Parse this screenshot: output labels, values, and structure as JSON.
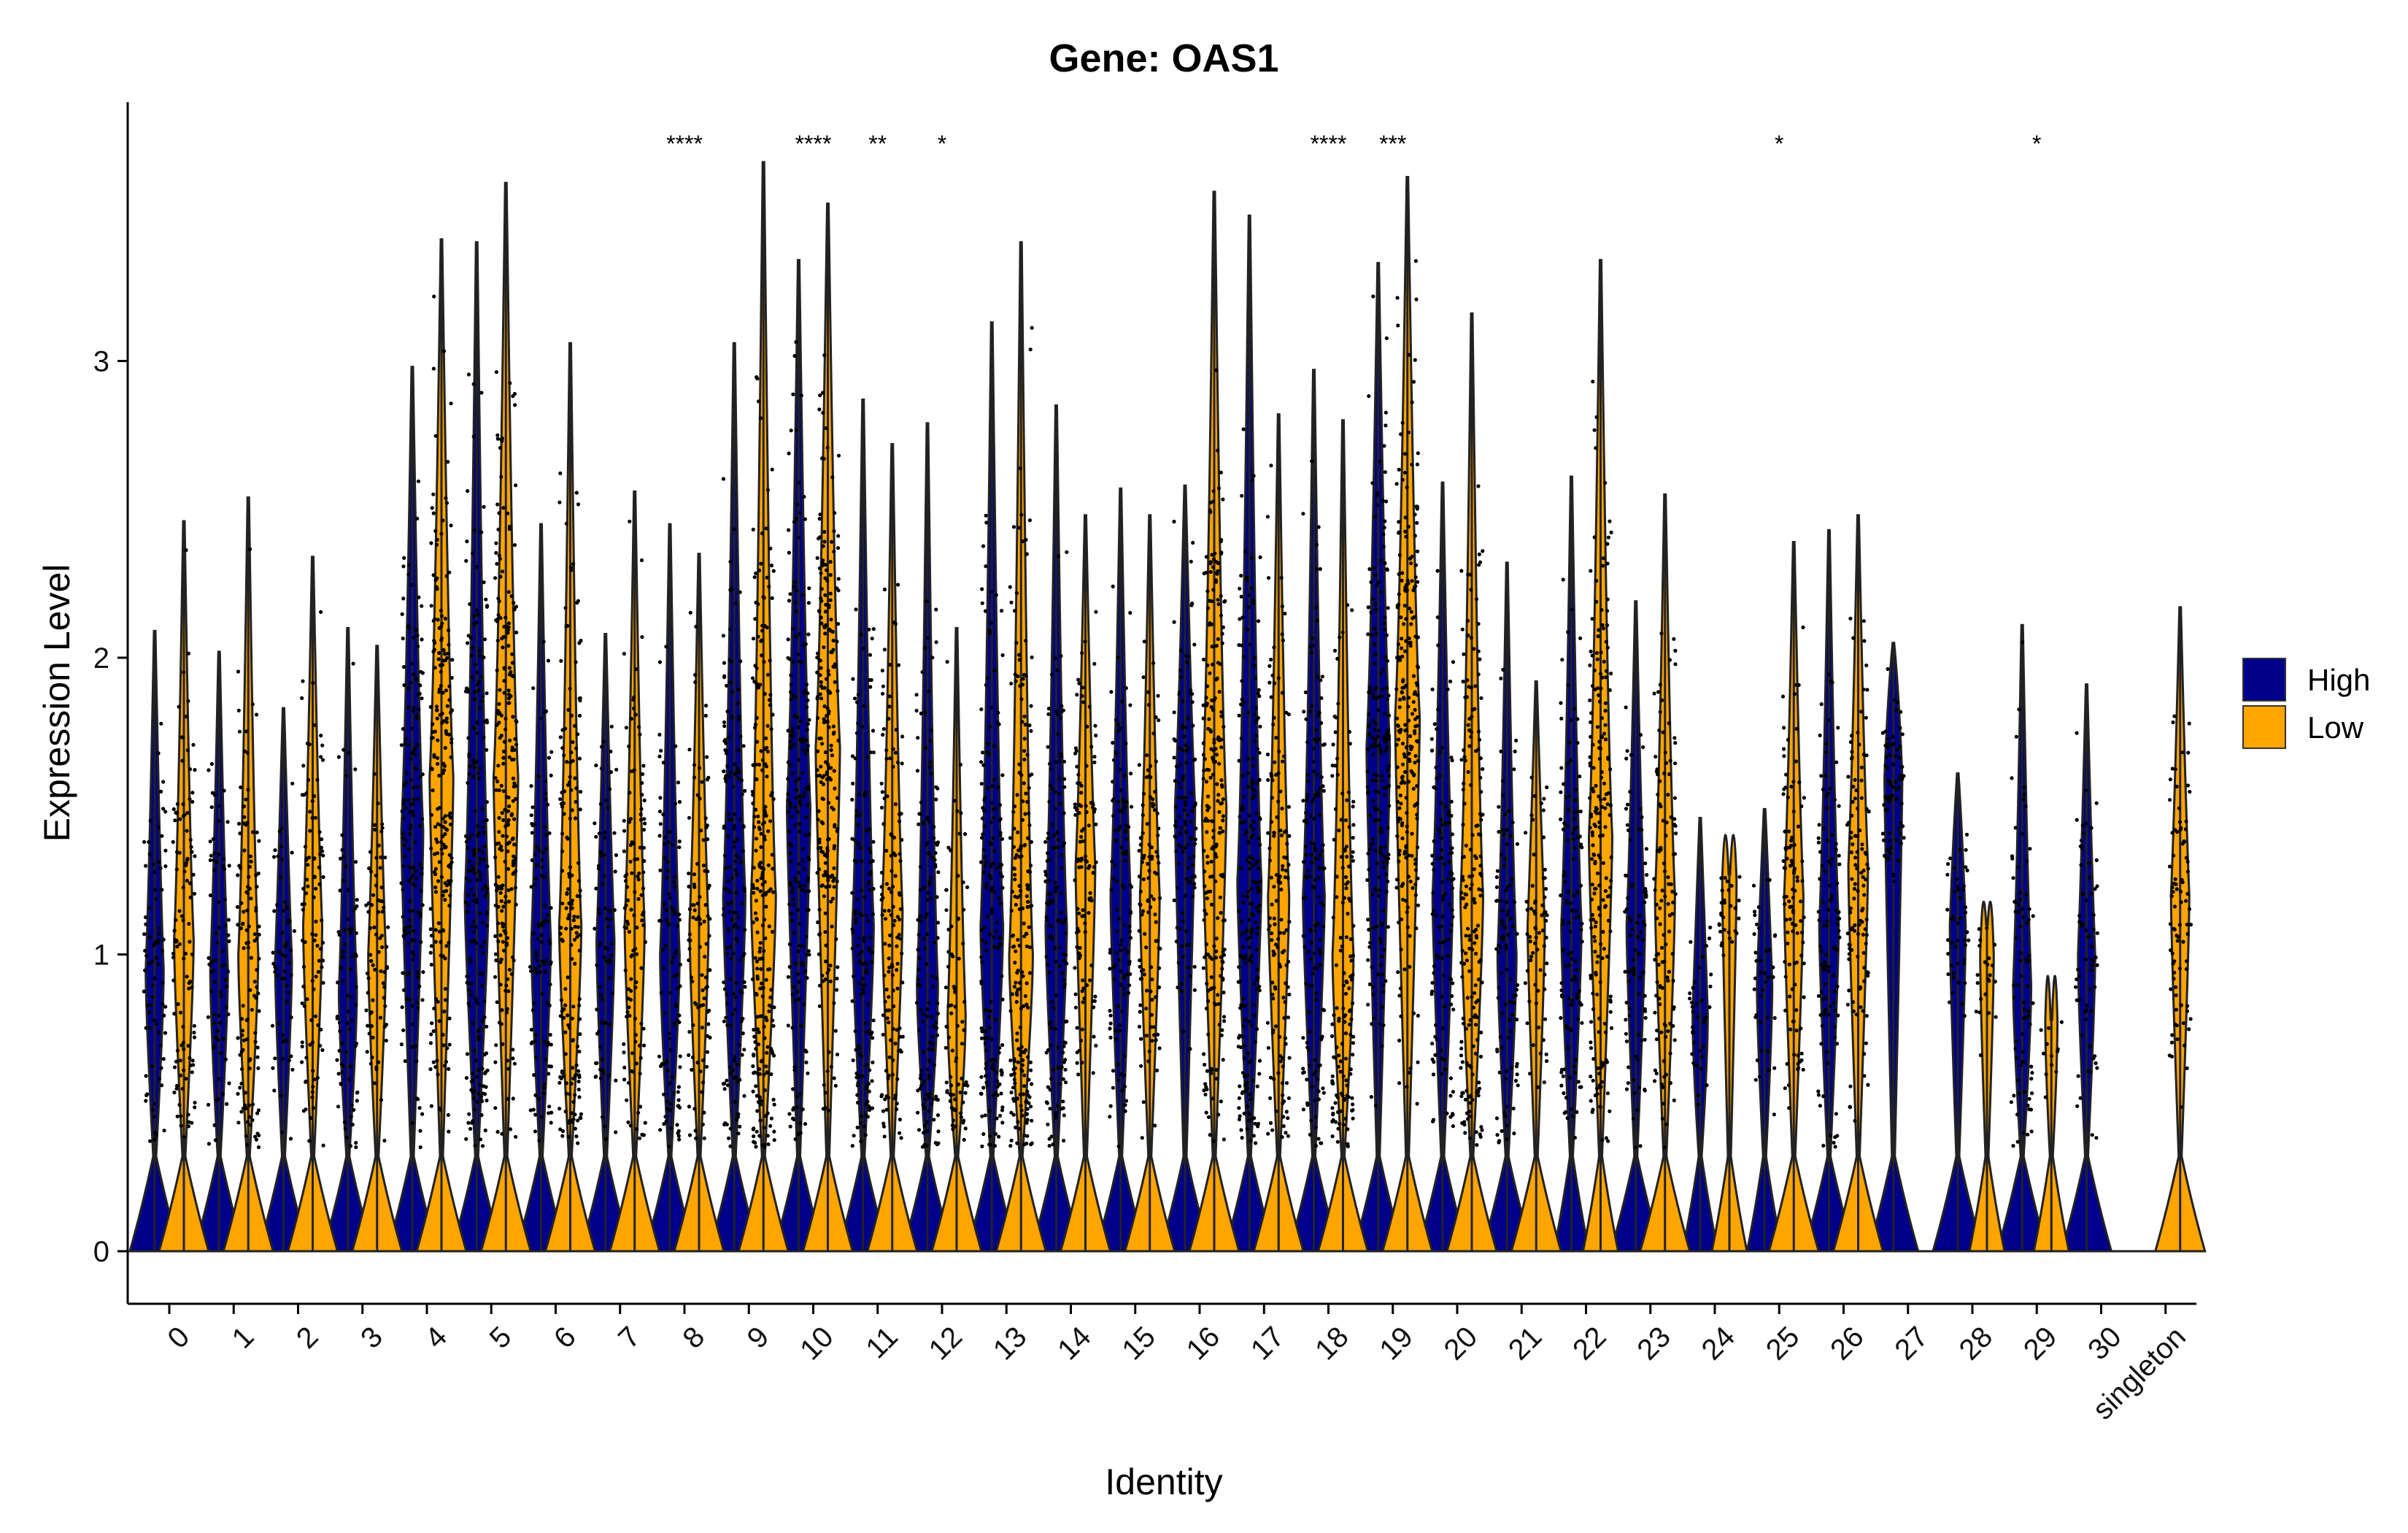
{
  "chart_data": {
    "type": "violin",
    "title": "Gene: OAS1",
    "xlabel": "Identity",
    "ylabel": "Expression Level",
    "ylim": [
      -0.18,
      3.87
    ],
    "yticks": [
      0,
      1,
      2,
      3
    ],
    "grid": false,
    "legend_position": "right",
    "categories": [
      "0",
      "1",
      "2",
      "3",
      "4",
      "5",
      "6",
      "7",
      "8",
      "9",
      "10",
      "11",
      "12",
      "13",
      "14",
      "15",
      "16",
      "17",
      "18",
      "19",
      "20",
      "21",
      "22",
      "23",
      "24",
      "25",
      "26",
      "27",
      "28",
      "29",
      "30",
      "singleton"
    ],
    "series": [
      {
        "name": "High",
        "color": "#00008B",
        "max_values": [
          2.09,
          2.02,
          1.83,
          2.1,
          2.98,
          3.4,
          2.45,
          2.08,
          2.45,
          3.06,
          3.34,
          2.87,
          2.79,
          3.13,
          2.85,
          2.57,
          2.58,
          3.49,
          2.97,
          3.33,
          2.59,
          2.32,
          2.61,
          2.19,
          1.46,
          1.49,
          2.43,
          2.05,
          1.61,
          2.11,
          1.91,
          0
        ],
        "median_nonzero": [
          0.95,
          0.95,
          0.98,
          0.88,
          1.42,
          1.2,
          1.05,
          1.05,
          1.0,
          1.2,
          1.5,
          1.1,
          0.9,
          1.1,
          1.1,
          1.2,
          1.5,
          1.25,
          1.2,
          1.7,
          1.2,
          1.0,
          1.1,
          1.1,
          0.8,
          0.9,
          1.1,
          1.6,
          1.1,
          0.9,
          1.0,
          0
        ]
      },
      {
        "name": "Low",
        "color": "#FFA500",
        "max_values": [
          2.46,
          2.54,
          2.34,
          2.04,
          3.41,
          3.6,
          3.06,
          2.56,
          2.35,
          3.67,
          3.53,
          2.72,
          2.1,
          3.4,
          2.48,
          2.48,
          3.57,
          2.82,
          2.8,
          3.62,
          3.16,
          1.92,
          3.34,
          2.55,
          1.27,
          2.39,
          2.48,
          0,
          1.1,
          0.78,
          0,
          2.17
        ],
        "median_nonzero": [
          1.05,
          1.0,
          1.1,
          1.0,
          1.6,
          1.6,
          1.1,
          1.1,
          1.1,
          1.2,
          1.7,
          1.15,
          0.8,
          1.0,
          1.3,
          1.2,
          1.5,
          1.2,
          1.0,
          1.8,
          1.2,
          1.1,
          1.4,
          1.2,
          1.25,
          1.2,
          1.3,
          0,
          1.0,
          0.78,
          0,
          1.2
        ]
      }
    ],
    "significance": [
      {
        "category": "8",
        "label": "****"
      },
      {
        "category": "10",
        "label": "****"
      },
      {
        "category": "11",
        "label": "**"
      },
      {
        "category": "12",
        "label": "*"
      },
      {
        "category": "18",
        "label": "****"
      },
      {
        "category": "19",
        "label": "***"
      },
      {
        "category": "25",
        "label": "*"
      },
      {
        "category": "29",
        "label": "*"
      }
    ]
  }
}
